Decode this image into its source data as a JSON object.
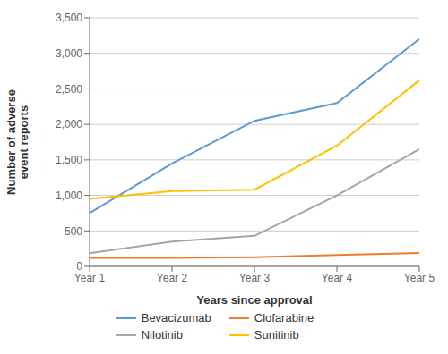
{
  "chart_data": {
    "type": "line",
    "categories": [
      "Year 1",
      "Year 2",
      "Year 3",
      "Year 4",
      "Year 5"
    ],
    "series": [
      {
        "name": "Bevacizumab",
        "color": "#5B9BD5",
        "values": [
          750,
          1450,
          2050,
          2300,
          3200
        ]
      },
      {
        "name": "Clofarabine",
        "color": "#ED7D31",
        "values": [
          120,
          120,
          130,
          160,
          190
        ]
      },
      {
        "name": "Nilotinib",
        "color": "#A5A5A5",
        "values": [
          185,
          350,
          430,
          1000,
          1650
        ]
      },
      {
        "name": "Sunitinib",
        "color": "#FFC000",
        "values": [
          950,
          1060,
          1080,
          1700,
          2620
        ]
      }
    ],
    "xlabel": "Years since approval",
    "ylabel": "Number of adverse\nevent reports",
    "ylim": [
      0,
      3500
    ],
    "yticks": [
      0,
      500,
      {
        "value": 1000,
        "label": "1,000"
      },
      {
        "value": 1500,
        "label": "1,500"
      },
      {
        "value": 2000,
        "label": "2,000"
      },
      {
        "value": 2500,
        "label": "2,500"
      },
      {
        "value": 3000,
        "label": "3,000"
      },
      {
        "value": 3500,
        "label": "3,500"
      }
    ],
    "grid": "y",
    "legend": "bottom"
  }
}
